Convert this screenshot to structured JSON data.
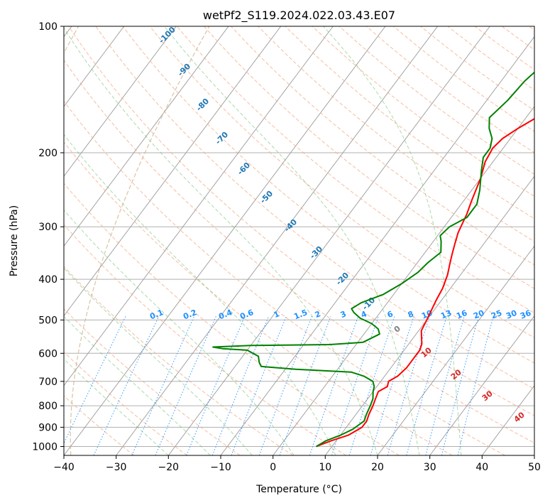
{
  "chart_data": {
    "type": "line",
    "title": "wetPf2_S119.2024.022.03.43.E07",
    "xlabel": "Temperature (°C)",
    "ylabel": "Pressure (hPa)",
    "xlim": [
      -40,
      50
    ],
    "ylim": [
      1050,
      100
    ],
    "y_scale": "log",
    "x_ticks": [
      -40,
      -30,
      -20,
      -10,
      0,
      10,
      20,
      30,
      40,
      50
    ],
    "y_ticks": [
      1000,
      900,
      800,
      700,
      600,
      500,
      400,
      300,
      200,
      100
    ],
    "grid": true,
    "isotherm_labels": [
      -100,
      -90,
      -80,
      -70,
      -60,
      -50,
      -40,
      -30,
      -20,
      -10
    ],
    "mixing_ratio_labels": [
      "0.1",
      "0.2",
      "0.4",
      "0.6",
      "1",
      "1.5",
      "2",
      "3",
      "4",
      "6",
      "8",
      "10",
      "13",
      "16",
      "20",
      "25",
      "30",
      "36"
    ],
    "dry_adiabat_labels": [
      "0",
      "10",
      "20",
      "30",
      "40"
    ],
    "series": [
      {
        "role": "temperature",
        "color": "#ff0000",
        "points": [
          [
            7,
            1000
          ],
          [
            9,
            970
          ],
          [
            11.5,
            940
          ],
          [
            13,
            900
          ],
          [
            13,
            870
          ],
          [
            12.5,
            840
          ],
          [
            12,
            800
          ],
          [
            11.5,
            770
          ],
          [
            11,
            740
          ],
          [
            12,
            720
          ],
          [
            11.5,
            700
          ],
          [
            12.5,
            680
          ],
          [
            13,
            650
          ],
          [
            13,
            620
          ],
          [
            13,
            590
          ],
          [
            12.5,
            570
          ],
          [
            11.5,
            550
          ],
          [
            10.5,
            530
          ],
          [
            10,
            500
          ],
          [
            9,
            450
          ],
          [
            8.5,
            420
          ],
          [
            7.5,
            390
          ],
          [
            6.5,
            370
          ],
          [
            5.5,
            350
          ],
          [
            4.5,
            330
          ],
          [
            3.5,
            310
          ],
          [
            2.5,
            280
          ],
          [
            1.5,
            260
          ],
          [
            0,
            230
          ],
          [
            -1.5,
            210
          ],
          [
            -2,
            195
          ],
          [
            -1.5,
            185
          ],
          [
            0,
            175
          ],
          [
            3,
            160
          ],
          [
            7,
            145
          ],
          [
            11,
            130
          ],
          [
            13,
            120
          ],
          [
            15,
            110
          ],
          [
            17,
            100
          ]
        ]
      },
      {
        "role": "dewpoint",
        "color": "#008000",
        "points": [
          [
            7,
            1000
          ],
          [
            8,
            970
          ],
          [
            10,
            940
          ],
          [
            11.5,
            910
          ],
          [
            12,
            890
          ],
          [
            12.5,
            870
          ],
          [
            12,
            840
          ],
          [
            11.5,
            800
          ],
          [
            11,
            770
          ],
          [
            10,
            740
          ],
          [
            9.5,
            720
          ],
          [
            8.5,
            700
          ],
          [
            6,
            680
          ],
          [
            3,
            665
          ],
          [
            -8,
            655
          ],
          [
            -15,
            645
          ],
          [
            -16,
            630
          ],
          [
            -17,
            610
          ],
          [
            -20,
            590
          ],
          [
            -25,
            585
          ],
          [
            -27,
            580
          ],
          [
            -20,
            575
          ],
          [
            -5,
            572
          ],
          [
            1,
            565
          ],
          [
            3,
            540
          ],
          [
            2,
            525
          ],
          [
            0,
            510
          ],
          [
            -3,
            495
          ],
          [
            -5,
            480
          ],
          [
            -6,
            470
          ],
          [
            -5,
            455
          ],
          [
            -2,
            435
          ],
          [
            0,
            410
          ],
          [
            1.5,
            385
          ],
          [
            2,
            365
          ],
          [
            3,
            345
          ],
          [
            1.5,
            325
          ],
          [
            0.5,
            315
          ],
          [
            1,
            300
          ],
          [
            3,
            285
          ],
          [
            3,
            265
          ],
          [
            1.5,
            245
          ],
          [
            -1,
            220
          ],
          [
            -2.5,
            205
          ],
          [
            -2.5,
            195
          ],
          [
            -3.5,
            185
          ],
          [
            -5.5,
            175
          ],
          [
            -7,
            165
          ],
          [
            -6,
            150
          ],
          [
            -5.5,
            135
          ],
          [
            -4,
            120
          ],
          [
            -2,
            110
          ],
          [
            1,
            100
          ]
        ]
      }
    ]
  }
}
